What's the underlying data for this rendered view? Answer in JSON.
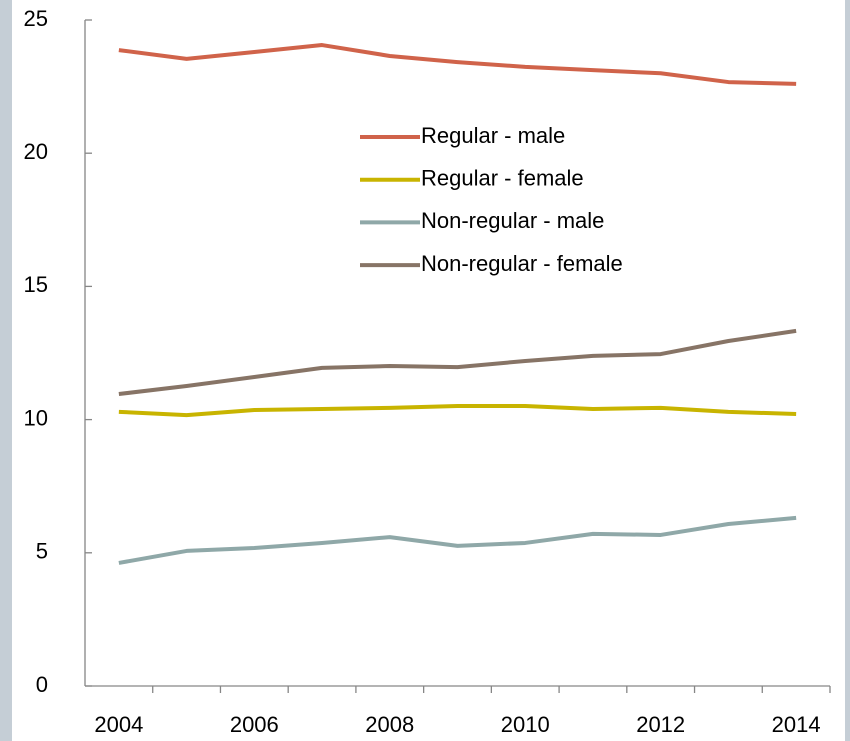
{
  "chart_data": {
    "type": "line",
    "categories": [
      "2004",
      null,
      "2006",
      null,
      "2008",
      null,
      "2010",
      null,
      "2012",
      null,
      "2014"
    ],
    "series": [
      {
        "name": "Regular - male",
        "color": "#d0634a",
        "values": [
          23.87,
          23.54,
          23.8,
          24.06,
          23.65,
          23.42,
          23.24,
          23.12,
          23.0,
          22.67,
          22.6
        ]
      },
      {
        "name": "Regular - female",
        "color": "#c8b400",
        "values": [
          10.29,
          10.17,
          10.36,
          10.4,
          10.44,
          10.51,
          10.51,
          10.4,
          10.44,
          10.29,
          10.21
        ]
      },
      {
        "name": "Non-regular - male",
        "color": "#8fa8a8",
        "values": [
          4.62,
          5.07,
          5.18,
          5.37,
          5.59,
          5.26,
          5.37,
          5.71,
          5.67,
          6.08,
          6.31
        ]
      },
      {
        "name": "Non-regular - female",
        "color": "#877466",
        "values": [
          10.96,
          11.26,
          11.6,
          11.94,
          12.01,
          11.97,
          12.2,
          12.39,
          12.46,
          12.95,
          13.33
        ]
      }
    ],
    "ylim": [
      0,
      25
    ],
    "yticks": [
      0,
      5,
      10,
      15,
      20,
      25
    ]
  }
}
